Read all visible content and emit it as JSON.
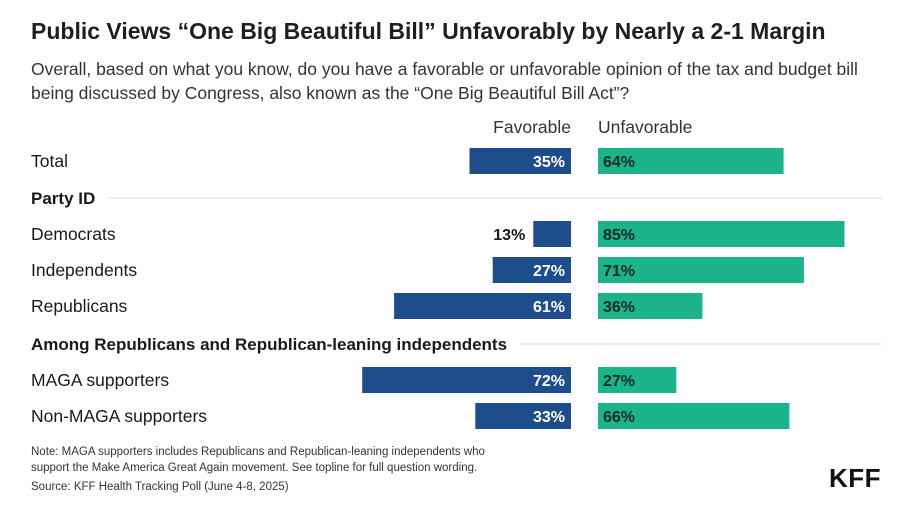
{
  "title": "Public Views “One Big Beautiful Bill” Unfavorably by Nearly a 2-1 Margin",
  "subtitle": "Overall, based on what you know, do you have a favorable or unfavorable opinion of the tax and budget bill being discussed by Congress, also known as the “One Big Beautiful Bill Act”?",
  "colors": {
    "favorable": "#1e4d8c",
    "unfavorable": "#1bb389",
    "divider": "#d9d9d9",
    "text": "#1a1a1a"
  },
  "chart_data": {
    "type": "bar",
    "orientation": "diverging-horizontal",
    "series": [
      {
        "name": "Favorable",
        "values": [
          35,
          13,
          27,
          61,
          72,
          33
        ]
      },
      {
        "name": "Unfavorable",
        "values": [
          64,
          85,
          71,
          36,
          27,
          66
        ]
      }
    ],
    "rows": [
      {
        "kind": "category",
        "label": "Total",
        "favorable": 35,
        "unfavorable": 64
      },
      {
        "kind": "header",
        "label": "Party ID"
      },
      {
        "kind": "category",
        "label": "Democrats",
        "favorable": 13,
        "unfavorable": 85
      },
      {
        "kind": "category",
        "label": "Independents",
        "favorable": 27,
        "unfavorable": 71
      },
      {
        "kind": "category",
        "label": "Republicans",
        "favorable": 61,
        "unfavorable": 36
      },
      {
        "kind": "header",
        "label": "Among Republicans and Republican-leaning independents"
      },
      {
        "kind": "category",
        "label": "MAGA supporters",
        "favorable": 72,
        "unfavorable": 27
      },
      {
        "kind": "category",
        "label": "Non-MAGA supporters",
        "favorable": 33,
        "unfavorable": 66
      }
    ],
    "unit": "%",
    "value_max": 100
  },
  "notes": {
    "line1": "Note: MAGA supporters includes Republicans and Republican-leaning independents who",
    "line2": "support the Make America Great Again movement. See topline for full question wording.",
    "source": "Source: KFF Health Tracking Poll (June 4-8, 2025)"
  },
  "logo": "KFF"
}
